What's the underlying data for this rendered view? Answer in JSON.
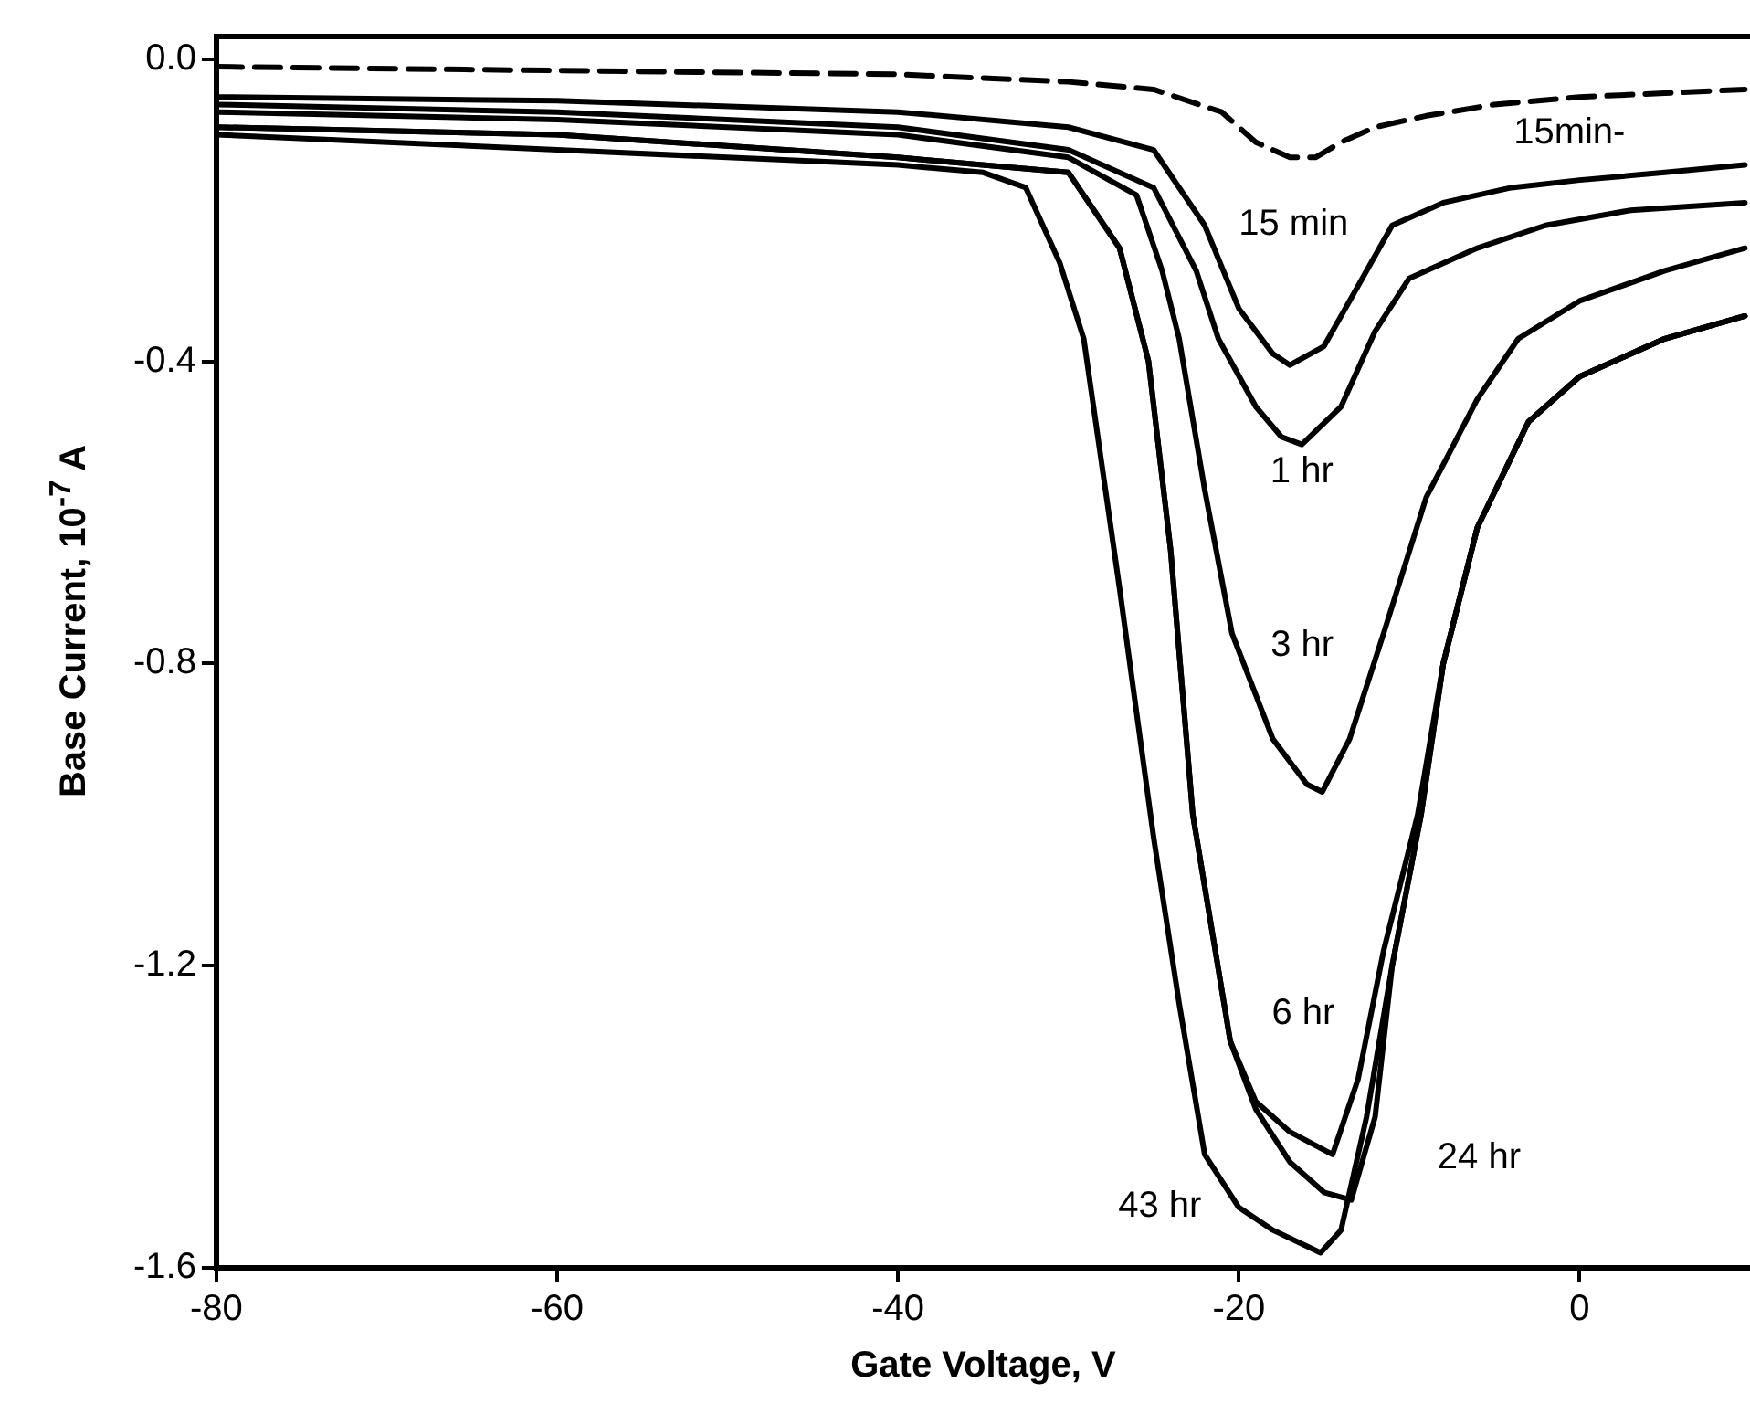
{
  "chart_data": {
    "type": "line",
    "xlabel": "Gate Voltage, V",
    "ylabel": "Base Current, 10$^{-7}$ A",
    "xlim": [
      -80,
      10
    ],
    "xticks": [
      -80,
      -60,
      -40,
      -20,
      0
    ],
    "ylim": [
      -1.6,
      0.03
    ],
    "yticks": [
      {
        "value": 0,
        "label": "0.0"
      },
      -0.4,
      -0.8,
      -1.2,
      -1.6
    ],
    "grid": false,
    "legend": false,
    "marker": "none",
    "series": [
      {
        "name": "15min-",
        "color": "#000000",
        "line_style": "dashed",
        "x": [
          -80,
          -60,
          -40,
          -30,
          -25,
          -21,
          -19,
          -17,
          -15.5,
          -14,
          -12,
          -9,
          -5,
          0,
          5,
          9.7
        ],
        "values": [
          -0.01,
          -0.015,
          -0.02,
          -0.03,
          -0.04,
          -0.07,
          -0.11,
          -0.13,
          -0.13,
          -0.11,
          -0.09,
          -0.075,
          -0.06,
          -0.05,
          -0.045,
          -0.04
        ]
      },
      {
        "name": "15 min",
        "color": "#000000",
        "line_style": "solid",
        "x": [
          -80,
          -60,
          -40,
          -30,
          -25,
          -22,
          -20,
          -18,
          -17,
          -15,
          -13,
          -11,
          -8,
          -4,
          0,
          5,
          9.7
        ],
        "values": [
          -0.05,
          -0.055,
          -0.07,
          -0.09,
          -0.12,
          -0.22,
          -0.33,
          -0.39,
          -0.405,
          -0.38,
          -0.3,
          -0.22,
          -0.19,
          -0.17,
          -0.16,
          -0.15,
          -0.14
        ]
      },
      {
        "name": "1 hr",
        "color": "#000000",
        "line_style": "solid",
        "x": [
          -80,
          -60,
          -40,
          -30,
          -25,
          -22.5,
          -21.2,
          -19,
          -17.5,
          -16.3,
          -14,
          -12,
          -10,
          -6,
          -2,
          3,
          9.7
        ],
        "values": [
          -0.06,
          -0.07,
          -0.09,
          -0.12,
          -0.17,
          -0.28,
          -0.37,
          -0.46,
          -0.5,
          -0.51,
          -0.46,
          -0.36,
          -0.29,
          -0.25,
          -0.22,
          -0.2,
          -0.19
        ]
      },
      {
        "name": "3 hr",
        "color": "#000000",
        "line_style": "solid",
        "x": [
          -80,
          -60,
          -40,
          -30,
          -26,
          -24.5,
          -23.5,
          -22,
          -20.4,
          -18,
          -16,
          -15.1,
          -13.5,
          -11.5,
          -9,
          -6,
          -3.6,
          0,
          5,
          9.7
        ],
        "values": [
          -0.07,
          -0.08,
          -0.1,
          -0.13,
          -0.18,
          -0.28,
          -0.37,
          -0.57,
          -0.76,
          -0.9,
          -0.96,
          -0.97,
          -0.9,
          -0.76,
          -0.58,
          -0.45,
          -0.37,
          -0.32,
          -0.28,
          -0.25
        ]
      },
      {
        "name": "6 hr",
        "color": "#000000",
        "line_style": "solid",
        "x": [
          -80,
          -60,
          -40,
          -30,
          -27,
          -25.3,
          -24,
          -22.7,
          -20.5,
          -19,
          -17,
          -14.5,
          -13,
          -11.5,
          -9.5,
          -8,
          -6,
          -3,
          0,
          5,
          9.7
        ],
        "values": [
          -0.09,
          -0.1,
          -0.13,
          -0.15,
          -0.25,
          -0.4,
          -0.65,
          -1.0,
          -1.3,
          -1.38,
          -1.42,
          -1.45,
          -1.35,
          -1.18,
          -1.0,
          -0.8,
          -0.62,
          -0.48,
          -0.42,
          -0.37,
          -0.34
        ]
      },
      {
        "name": "24 hr",
        "color": "#000000",
        "line_style": "solid",
        "x": [
          -80,
          -60,
          -40,
          -30,
          -27,
          -25.3,
          -24,
          -22.7,
          -20.5,
          -19,
          -17,
          -15,
          -13.4,
          -12,
          -11,
          -9.3,
          -8,
          -6,
          -3,
          0,
          5,
          9.7
        ],
        "values": [
          -0.09,
          -0.1,
          -0.13,
          -0.15,
          -0.25,
          -0.4,
          -0.65,
          -1.0,
          -1.3,
          -1.39,
          -1.46,
          -1.5,
          -1.51,
          -1.4,
          -1.2,
          -1.0,
          -0.8,
          -0.62,
          -0.48,
          -0.42,
          -0.37,
          -0.34
        ]
      },
      {
        "name": "43 hr",
        "color": "#000000",
        "line_style": "solid",
        "x": [
          -80,
          -60,
          -40,
          -35,
          -32.5,
          -30.5,
          -29.1,
          -27,
          -25,
          -23.5,
          -22,
          -20,
          -18,
          -15.2,
          -14,
          -12.5,
          -11,
          -9.3,
          -8,
          -6,
          -3,
          0,
          5,
          9.7
        ],
        "values": [
          -0.1,
          -0.12,
          -0.14,
          -0.15,
          -0.17,
          -0.27,
          -0.37,
          -0.7,
          -1.03,
          -1.25,
          -1.45,
          -1.52,
          -1.55,
          -1.58,
          -1.55,
          -1.4,
          -1.2,
          -1.0,
          -0.8,
          -0.62,
          -0.48,
          -0.42,
          -0.37,
          -0.34
        ]
      }
    ]
  }
}
